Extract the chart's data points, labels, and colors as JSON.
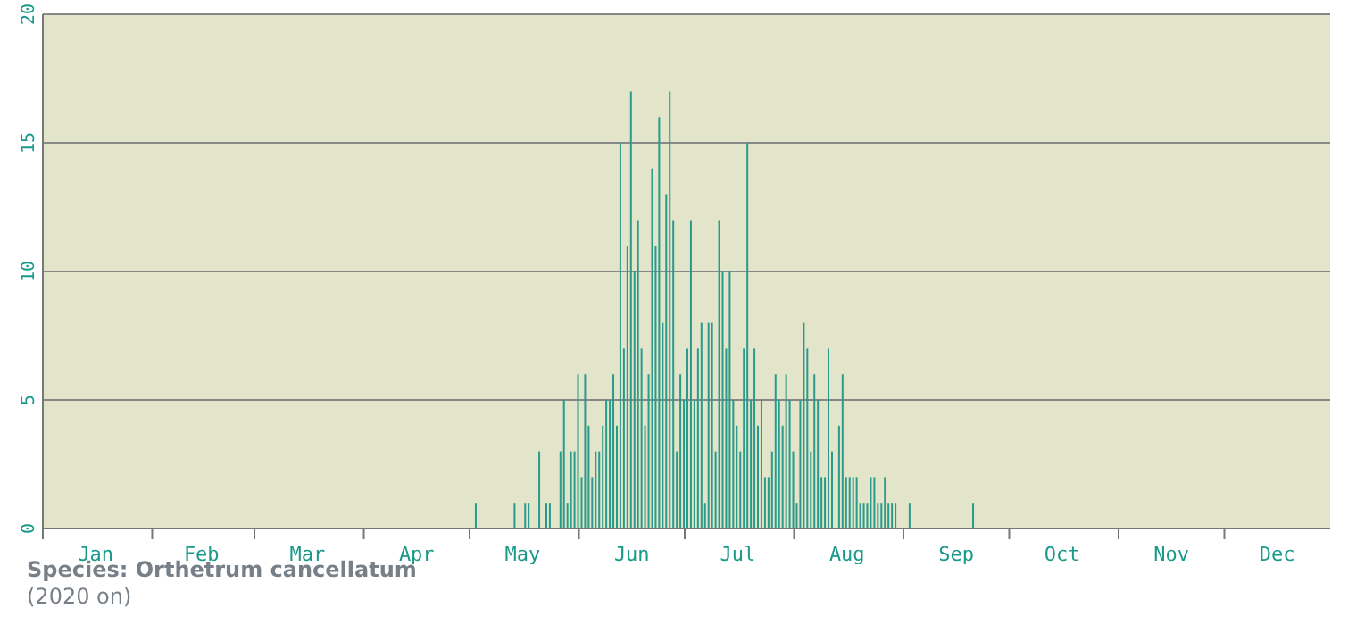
{
  "chart_data": {
    "type": "bar",
    "color": "#2a9a8a",
    "x": [
      "--05-03",
      "--05-14",
      "--05-17",
      "--05-18",
      "--05-21",
      "--05-23",
      "--05-24",
      "--05-27",
      "--05-28",
      "--05-29",
      "--05-30",
      "--05-31",
      "--06-01",
      "--06-02",
      "--06-03",
      "--06-04",
      "--06-05",
      "--06-06",
      "--06-07",
      "--06-08",
      "--06-09",
      "--06-10",
      "--06-11",
      "--06-12",
      "--06-13",
      "--06-14",
      "--06-15",
      "--06-16",
      "--06-17",
      "--06-18",
      "--06-19",
      "--06-20",
      "--06-21",
      "--06-22",
      "--06-23",
      "--06-24",
      "--06-25",
      "--06-26",
      "--06-27",
      "--06-28",
      "--06-29",
      "--06-30",
      "--07-01",
      "--07-02",
      "--07-03",
      "--07-04",
      "--07-05",
      "--07-06",
      "--07-07",
      "--07-08",
      "--07-09",
      "--07-10",
      "--07-11",
      "--07-12",
      "--07-13",
      "--07-14",
      "--07-15",
      "--07-16",
      "--07-17",
      "--07-18",
      "--07-19",
      "--07-20",
      "--07-21",
      "--07-22",
      "--07-23",
      "--07-24",
      "--07-25",
      "--07-26",
      "--07-27",
      "--07-28",
      "--07-29",
      "--07-30",
      "--07-31",
      "--08-01",
      "--08-02",
      "--08-03",
      "--08-04",
      "--08-05",
      "--08-06",
      "--08-07",
      "--08-08",
      "--08-09",
      "--08-10",
      "--08-11",
      "--08-12",
      "--08-14",
      "--08-15",
      "--08-16",
      "--08-17",
      "--08-18",
      "--08-19",
      "--08-20",
      "--08-21",
      "--08-22",
      "--08-23",
      "--08-24",
      "--08-25",
      "--08-26",
      "--08-27",
      "--08-28",
      "--08-29",
      "--08-30",
      "--09-03",
      "--09-21"
    ],
    "values": [
      1,
      1,
      1,
      1,
      3,
      1,
      1,
      3,
      5,
      1,
      3,
      3,
      6,
      2,
      6,
      4,
      2,
      3,
      3,
      4,
      5,
      5,
      6,
      4,
      15,
      7,
      11,
      17,
      10,
      12,
      7,
      4,
      6,
      14,
      11,
      16,
      8,
      13,
      17,
      12,
      3,
      6,
      5,
      7,
      12,
      5,
      7,
      8,
      1,
      8,
      8,
      3,
      12,
      10,
      7,
      10,
      5,
      4,
      3,
      7,
      15,
      5,
      7,
      4,
      5,
      2,
      2,
      3,
      6,
      5,
      4,
      6,
      5,
      3,
      1,
      5,
      8,
      7,
      3,
      6,
      5,
      2,
      2,
      7,
      3,
      4,
      6,
      2,
      2,
      2,
      2,
      1,
      1,
      1,
      2,
      2,
      1,
      1,
      2,
      1,
      1,
      1,
      1,
      1
    ],
    "xlim": [
      "--01-01",
      "--12-31"
    ],
    "xticks": [
      {
        "value": "--01-01",
        "label": null
      },
      {
        "value": "--01-16",
        "label": "Jan"
      },
      {
        "value": "--02-01",
        "label": null
      },
      {
        "value": "--02-15",
        "label": "Feb"
      },
      {
        "value": "--03-01",
        "label": null
      },
      {
        "value": "--03-16",
        "label": "Mar"
      },
      {
        "value": "--04-01",
        "label": null
      },
      {
        "value": "--04-16",
        "label": "Apr"
      },
      {
        "value": "--05-01",
        "label": null
      },
      {
        "value": "--05-16",
        "label": "May"
      },
      {
        "value": "--06-01",
        "label": null
      },
      {
        "value": "--06-16",
        "label": "Jun"
      },
      {
        "value": "--07-01",
        "label": null
      },
      {
        "value": "--07-16",
        "label": "Jul"
      },
      {
        "value": "--08-01",
        "label": null
      },
      {
        "value": "--08-16",
        "label": "Aug"
      },
      {
        "value": "--09-01",
        "label": null
      },
      {
        "value": "--09-16",
        "label": "Sep"
      },
      {
        "value": "--10-01",
        "label": null
      },
      {
        "value": "--10-16",
        "label": "Oct"
      },
      {
        "value": "--11-01",
        "label": null
      },
      {
        "value": "--11-16",
        "label": "Nov"
      },
      {
        "value": "--12-01",
        "label": null
      },
      {
        "value": "--12-16",
        "label": "Dec"
      }
    ],
    "ylim": [
      0,
      20
    ],
    "yticks": [
      0,
      5,
      10,
      15,
      20
    ],
    "grid": "y",
    "annotations": [
      "Species:  Orthetrum cancellatum",
      "(2020 on)"
    ]
  }
}
